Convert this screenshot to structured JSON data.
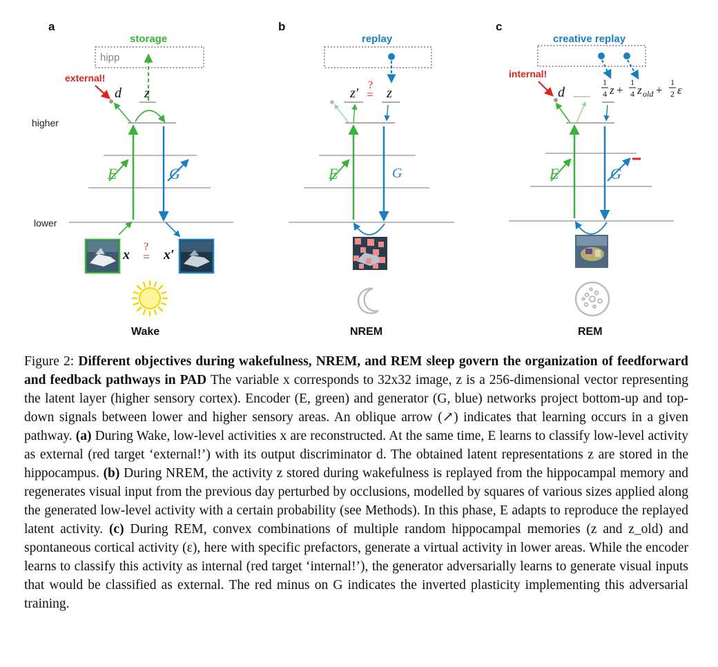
{
  "panels": [
    {
      "letter": "a",
      "phase": "Wake",
      "top_label": "storage",
      "target": "external!"
    },
    {
      "letter": "b",
      "phase": "NREM",
      "top_label": "replay",
      "target": ""
    },
    {
      "letter": "c",
      "phase": "REM",
      "top_label": "creative replay",
      "target": "internal!"
    }
  ],
  "box_label": "hipp",
  "level_labels": {
    "higher": "higher",
    "lower": "lower"
  },
  "symbols": {
    "d": "d",
    "z": "z",
    "z_prime": "z′",
    "E": "E",
    "G": "G",
    "x": "x",
    "x_prime": "x′",
    "q_eq": "?",
    "eq": "=",
    "minus": "-",
    "rem_formula": "¼z+¼z_old+½ε"
  },
  "colors": {
    "encoder": "#3bb33b",
    "generator": "#1a7fc1",
    "target": "#e0241b",
    "hipp": "#999999"
  },
  "caption": {
    "fig_label": "Figure 2:",
    "title": "Different objectives during wakefulness, NREM, and REM sleep govern the organization of feedforward and feedback pathways in PAD",
    "intro": "The variable x corresponds to 32x32 image, z is a 256-dimensional vector representing the latent layer (higher sensory cortex). Encoder (E, green) and generator (G, blue) networks project bottom-up and top-down signals between lower and higher sensory areas. An oblique arrow (↗) indicates that learning occurs in a given pathway.",
    "a_tag": "(a)",
    "a_text": "During Wake, low-level activities x are reconstructed. At the same time, E learns to classify low-level activity as external (red target ‘external!’) with its output discriminator d. The obtained latent representations z are stored in the hippocampus.",
    "b_tag": "(b)",
    "b_text": "During NREM, the activity z stored during wakefulness is replayed from the hippocampal memory and regenerates visual input from the previous day perturbed by occlusions, modelled by squares of various sizes applied along the generated low-level activity with a certain probability (see Methods). In this phase, E adapts to reproduce the replayed latent activity.",
    "c_tag": "(c)",
    "c_text": "During REM, convex combinations of multiple random hippocampal memories (z and z_old) and spontaneous cortical activity (ε), here with specific prefactors, generate a virtual activity in lower areas. While the encoder learns to classify this activity as internal (red target ‘internal!’), the generator adversarially learns to generate visual inputs that would be classified as external. The red minus on G indicates the inverted plasticity implementing this adversarial training."
  }
}
